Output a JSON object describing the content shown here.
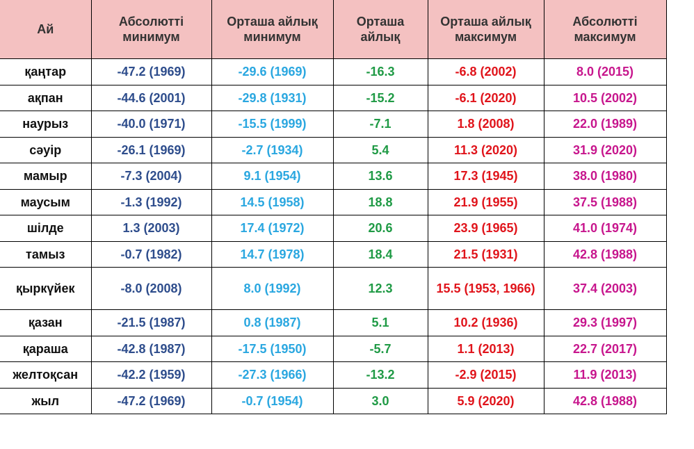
{
  "headers": {
    "month": "Ай",
    "abs_min": "Абсолютті минимум",
    "avg_min": "Орташа айлық минимум",
    "avg": "Орташа айлық",
    "avg_max": "Орташа айлық максимум",
    "abs_max": "Абсолютті максимум"
  },
  "rows": [
    {
      "month": "қаңтар",
      "abs_min": "-47.2 (1969)",
      "avg_min": "-29.6 (1969)",
      "avg": "-16.3",
      "avg_max": "-6.8 (2002)",
      "abs_max": "8.0 (2015)"
    },
    {
      "month": "ақпан",
      "abs_min": "-44.6 (2001)",
      "avg_min": "-29.8 (1931)",
      "avg": "-15.2",
      "avg_max": "-6.1 (2020)",
      "abs_max": "10.5 (2002)"
    },
    {
      "month": "наурыз",
      "abs_min": "-40.0 (1971)",
      "avg_min": "-15.5 (1999)",
      "avg": "-7.1",
      "avg_max": "1.8 (2008)",
      "abs_max": "22.0 (1989)"
    },
    {
      "month": "сәуір",
      "abs_min": "-26.1 (1969)",
      "avg_min": "-2.7 (1934)",
      "avg": "5.4",
      "avg_max": "11.3 (2020)",
      "abs_max": "31.9 (2020)"
    },
    {
      "month": "мамыр",
      "abs_min": "-7.3 (2004)",
      "avg_min": "9.1 (1954)",
      "avg": "13.6",
      "avg_max": "17.3 (1945)",
      "abs_max": "38.0 (1980)"
    },
    {
      "month": "маусым",
      "abs_min": "-1.3 (1992)",
      "avg_min": "14.5 (1958)",
      "avg": "18.8",
      "avg_max": "21.9 (1955)",
      "abs_max": "37.5 (1988)"
    },
    {
      "month": "шілде",
      "abs_min": "1.3 (2003)",
      "avg_min": "17.4 (1972)",
      "avg": "20.6",
      "avg_max": "23.9 (1965)",
      "abs_max": "41.0 (1974)"
    },
    {
      "month": "тамыз",
      "abs_min": "-0.7 (1982)",
      "avg_min": "14.7 (1978)",
      "avg": "18.4",
      "avg_max": "21.5 (1931)",
      "abs_max": "42.8 (1988)"
    },
    {
      "month": "қыркүйек",
      "abs_min": "-8.0 (2008)",
      "avg_min": "8.0 (1992)",
      "avg": "12.3",
      "avg_max": "15.5 (1953, 1966)",
      "abs_max": "37.4 (2003)"
    },
    {
      "month": "қазан",
      "abs_min": "-21.5 (1987)",
      "avg_min": "0.8 (1987)",
      "avg": "5.1",
      "avg_max": "10.2 (1936)",
      "abs_max": "29.3 (1997)"
    },
    {
      "month": "қараша",
      "abs_min": "-42.8 (1987)",
      "avg_min": "-17.5 (1950)",
      "avg": "-5.7",
      "avg_max": "1.1 (2013)",
      "abs_max": "22.7 (2017)"
    },
    {
      "month": "желтоқсан",
      "abs_min": "-42.2 (1959)",
      "avg_min": "-27.3 (1966)",
      "avg": "-13.2",
      "avg_max": "-2.9 (2015)",
      "abs_max": "11.9 (2013)"
    },
    {
      "month": "жыл",
      "abs_min": "-47.2 (1969)",
      "avg_min": "-0.7 (1954)",
      "avg": "3.0",
      "avg_max": "5.9 (2020)",
      "abs_max": "42.8 (1988)"
    }
  ],
  "colors": {
    "header_bg": "#f4c1c1",
    "abs_min": "#2e4d8c",
    "avg_min": "#2aa7e0",
    "avg": "#1f9a45",
    "avg_max": "#e0141b",
    "abs_max": "#c7168d"
  }
}
